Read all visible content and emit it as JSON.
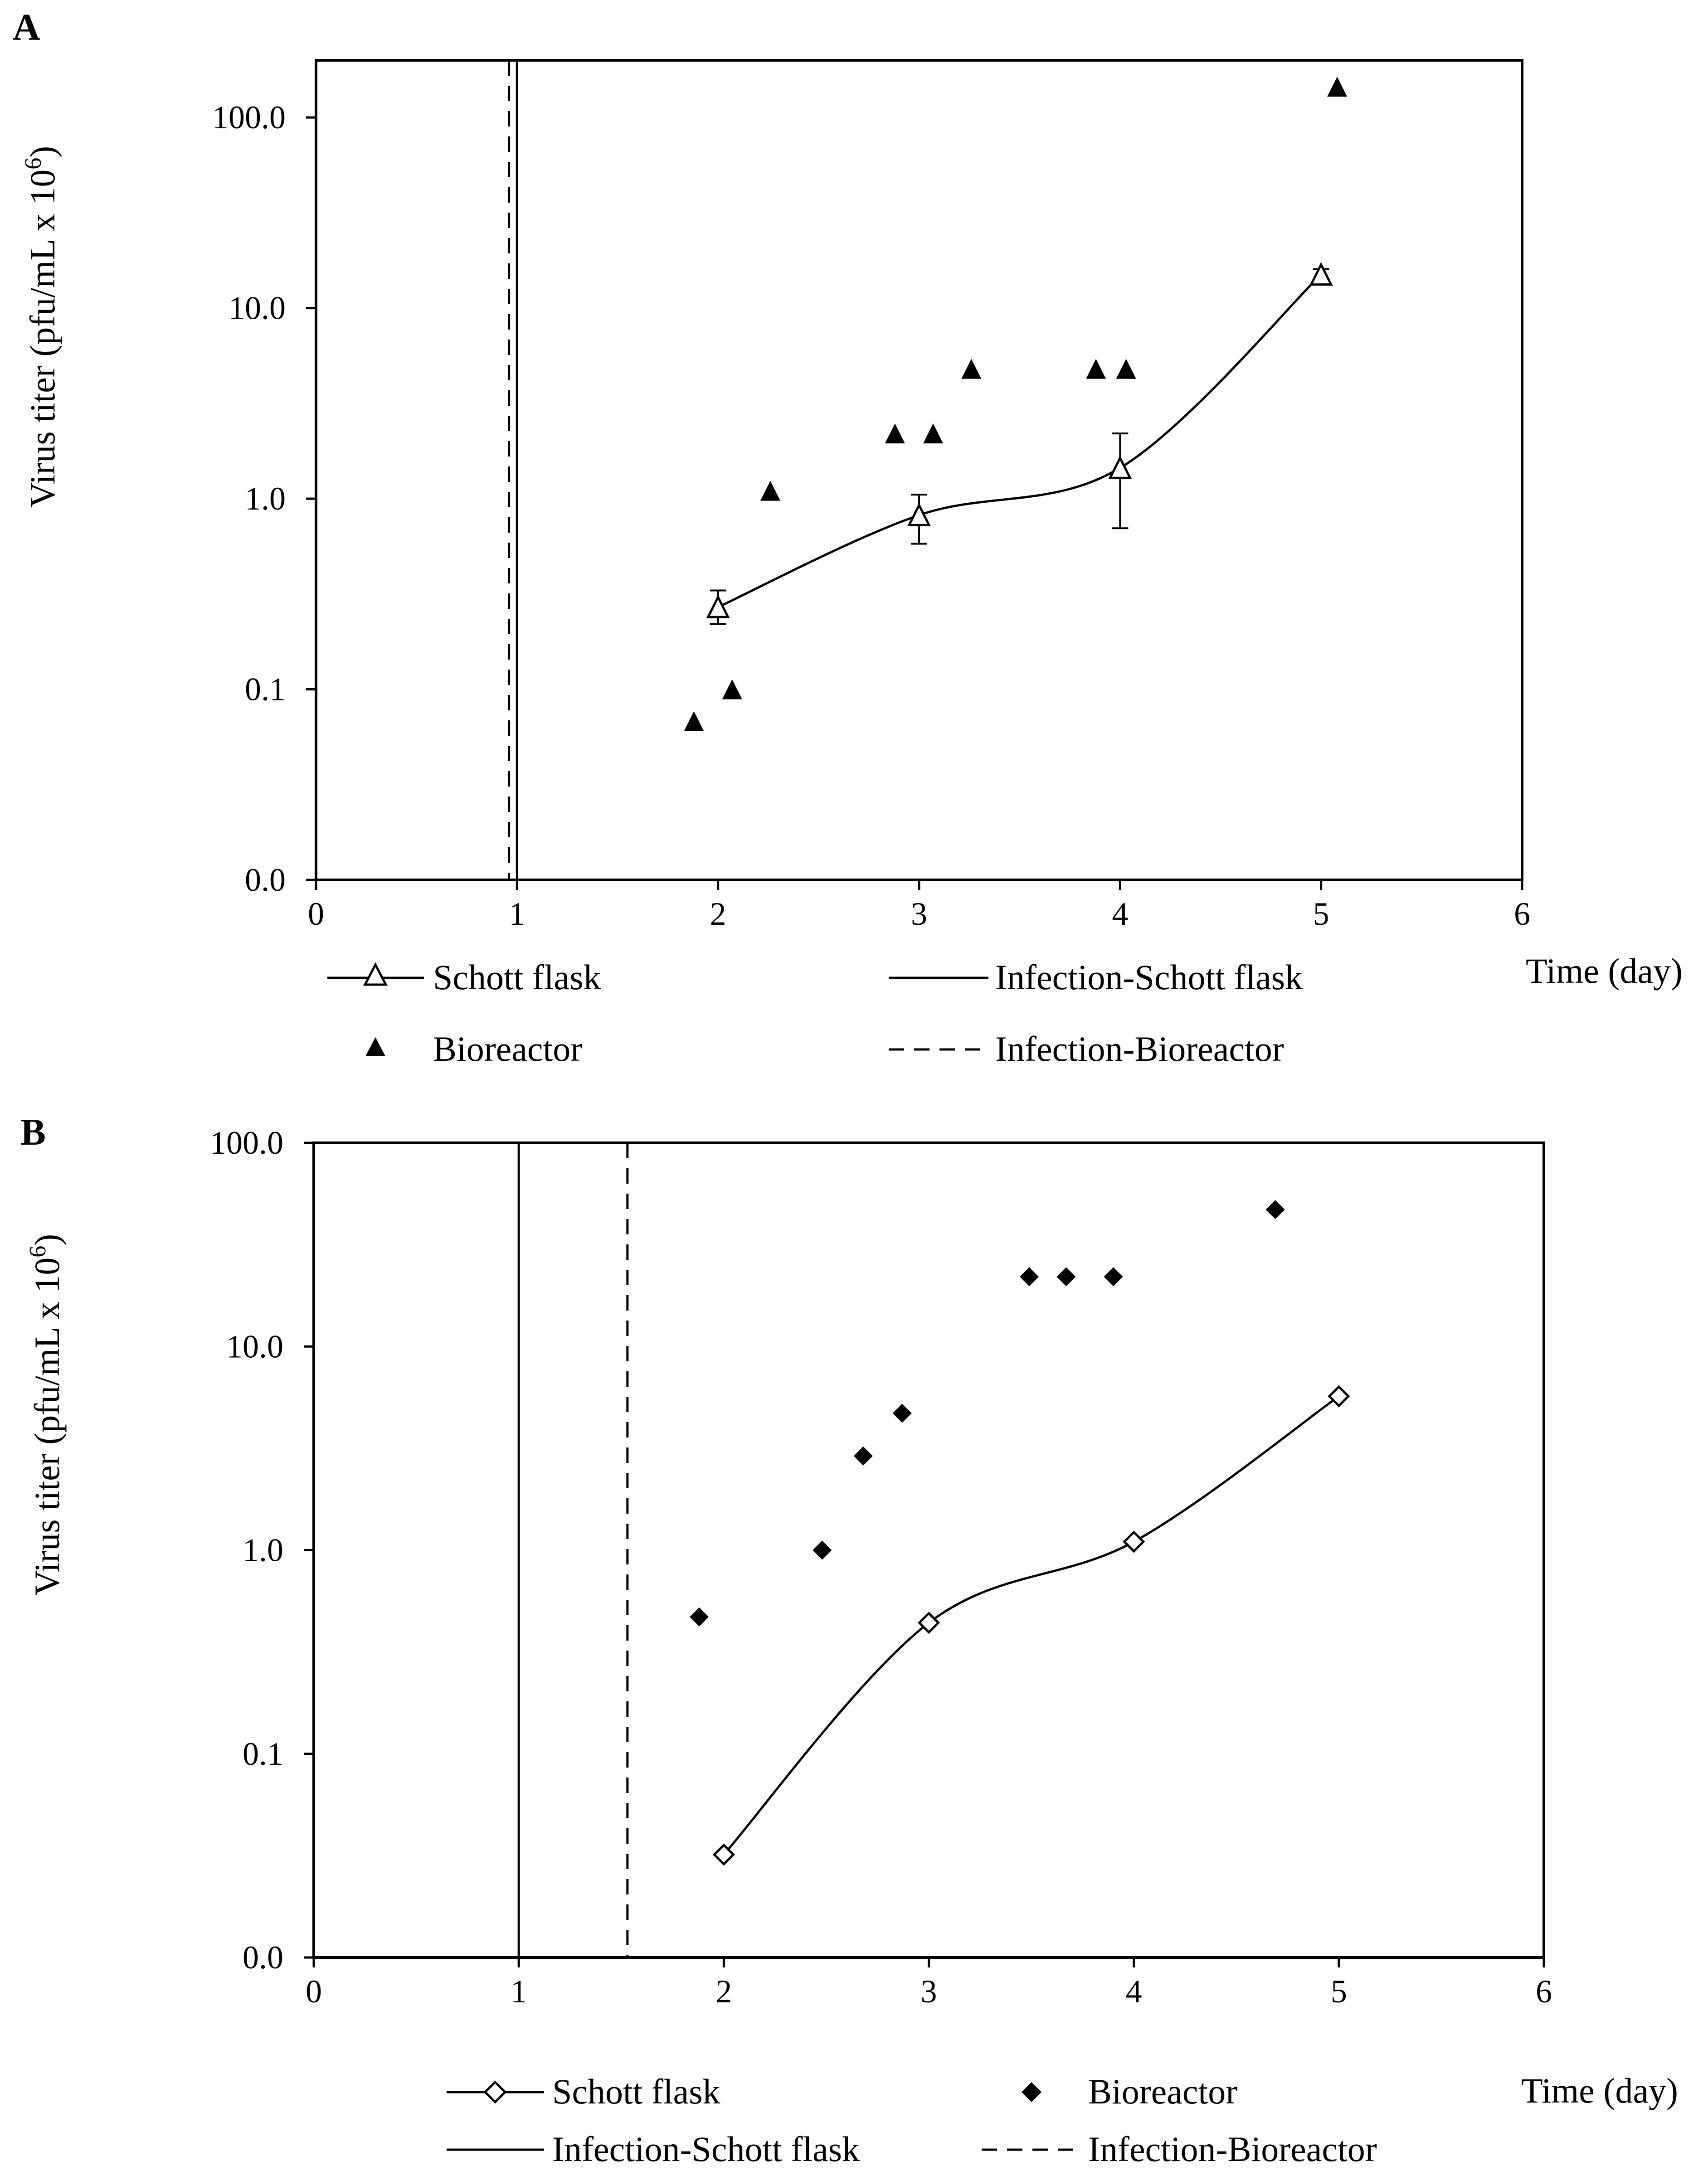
{
  "chart_data": [
    {
      "panel": "A",
      "type": "scatter",
      "title": "",
      "xlabel": "Time (day)",
      "ylabel_main": "Virus titer (pfu/mL x 10",
      "ylabel_sup": "6",
      "ylabel_end": ")",
      "ylabel": "Virus titer (pfu/mL x 106)",
      "xlim": [
        0,
        6
      ],
      "xticks": [
        0,
        1,
        2,
        3,
        4,
        5,
        6
      ],
      "ylim_decades": [
        -2,
        2.3
      ],
      "yticks": [
        {
          "label": "0.0",
          "decade": -2
        },
        {
          "label": "0.1",
          "decade": -1
        },
        {
          "label": "1.0",
          "decade": 0
        },
        {
          "label": "10.0",
          "decade": 1
        },
        {
          "label": "100.0",
          "decade": 2
        }
      ],
      "series": [
        {
          "name": "Schott flask",
          "marker": "open-triangle",
          "line": "smooth",
          "x": [
            2,
            3,
            4,
            5
          ],
          "y": [
            0.27,
            0.82,
            1.45,
            15
          ],
          "err_low": [
            0.22,
            0.58,
            0.7,
            14
          ],
          "err_high": [
            0.33,
            1.05,
            2.2,
            16
          ]
        },
        {
          "name": "Bioreactor",
          "marker": "filled-triangle",
          "line": "none",
          "x": [
            1.88,
            2.07,
            2.26,
            2.88,
            3.07,
            3.26,
            3.88,
            4.03,
            5.08
          ],
          "y": [
            0.068,
            0.1,
            1.1,
            2.2,
            2.2,
            4.8,
            4.8,
            4.8,
            145
          ]
        }
      ],
      "infection_lines": [
        {
          "name": "Infection-Schott flask",
          "x": 1.0,
          "style": "solid"
        },
        {
          "name": "Infection-Bioreactor",
          "x": 0.96,
          "style": "dashed"
        }
      ],
      "legend": [
        "Schott flask",
        "Infection-Schott flask",
        "Bioreactor",
        "Infection-Bioreactor"
      ]
    },
    {
      "panel": "B",
      "type": "scatter",
      "title": "",
      "xlabel": "Time (day)",
      "ylabel_main": "Virus titer (pfu/mL x 10",
      "ylabel_sup": "6",
      "ylabel_end": ")",
      "ylabel": "Virus titer (pfu/mL x 106)",
      "xlim": [
        0,
        6
      ],
      "xticks": [
        0,
        1,
        2,
        3,
        4,
        5,
        6
      ],
      "ylim_decades": [
        -2,
        2
      ],
      "yticks": [
        {
          "label": "0.0",
          "decade": -2
        },
        {
          "label": "0.1",
          "decade": -1
        },
        {
          "label": "1.0",
          "decade": 0
        },
        {
          "label": "10.0",
          "decade": 1
        },
        {
          "label": "100.0",
          "decade": 2
        }
      ],
      "series": [
        {
          "name": "Schott flask",
          "marker": "open-diamond",
          "line": "smooth",
          "x": [
            2,
            3,
            4,
            5
          ],
          "y": [
            0.032,
            0.44,
            1.1,
            5.7
          ]
        },
        {
          "name": "Bioreactor",
          "marker": "filled-diamond",
          "line": "none",
          "x": [
            1.88,
            2.48,
            2.68,
            2.87,
            3.49,
            3.67,
            3.9,
            4.69
          ],
          "y": [
            0.47,
            1.0,
            2.9,
            4.7,
            22,
            22,
            22,
            47
          ]
        }
      ],
      "infection_lines": [
        {
          "name": "Infection-Schott flask",
          "x": 1.0,
          "style": "solid"
        },
        {
          "name": "Infection-Bioreactor",
          "x": 1.53,
          "style": "dashed"
        }
      ],
      "legend": [
        "Schott flask",
        "Bioreactor",
        "Infection-Schott flask",
        "Infection-Bioreactor"
      ]
    }
  ]
}
